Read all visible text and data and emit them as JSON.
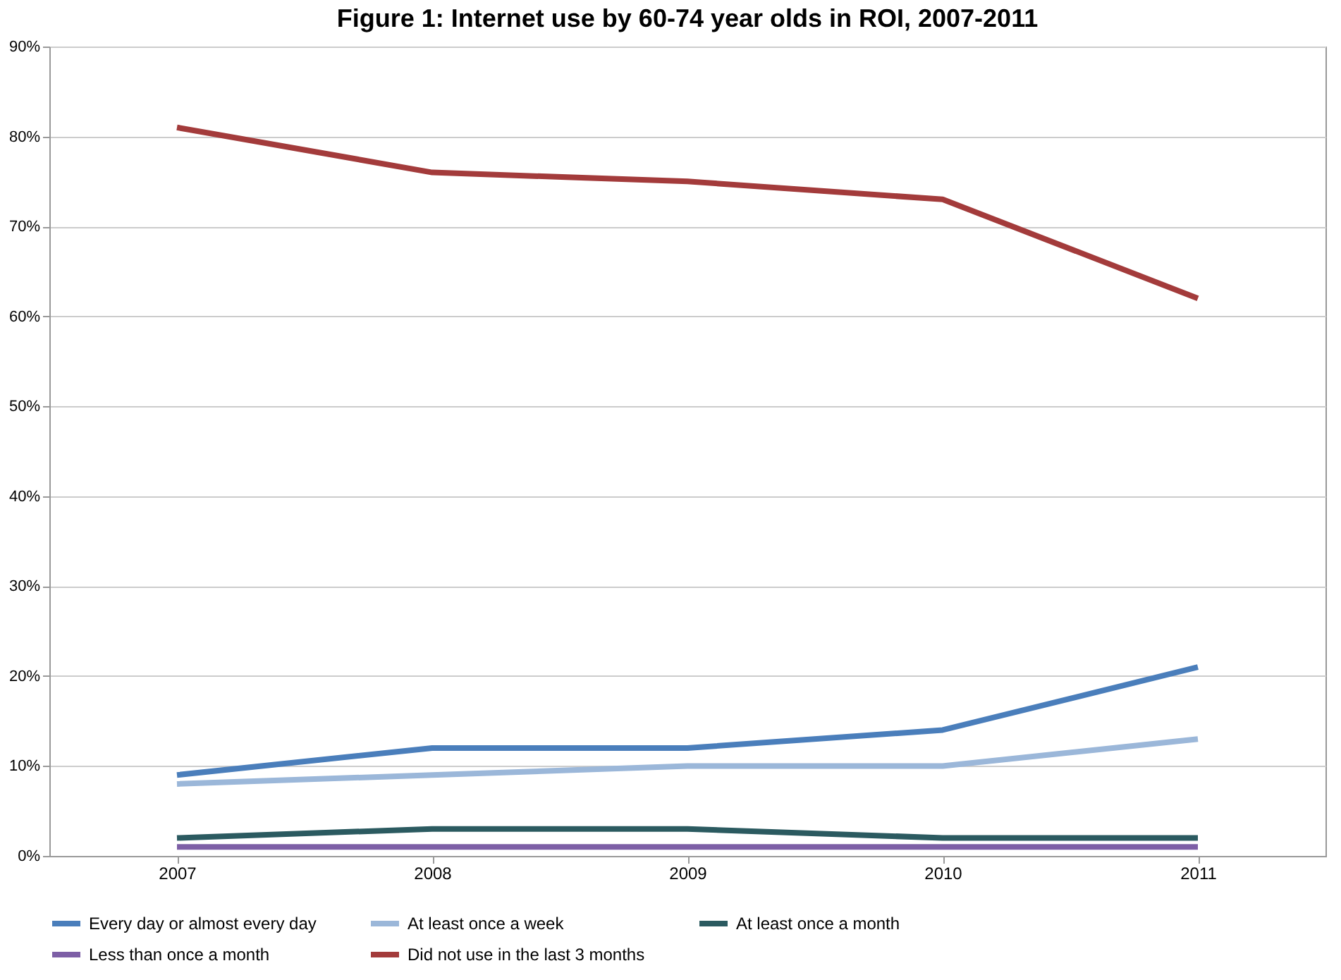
{
  "chart_data": {
    "type": "line",
    "title": "Figure 1: Internet use by 60-74 year olds in ROI, 2007-2011",
    "categories": [
      "2007",
      "2008",
      "2009",
      "2010",
      "2011"
    ],
    "series": [
      {
        "name": "Every day or almost every day",
        "color": "#4a7ebb",
        "values": [
          9,
          12,
          12,
          14,
          21
        ]
      },
      {
        "name": "At least once a week",
        "color": "#9bb7d9",
        "values": [
          8,
          9,
          10,
          10,
          13
        ]
      },
      {
        "name": "At least once a month",
        "color": "#2b5a60",
        "values": [
          2,
          3,
          3,
          2,
          2
        ]
      },
      {
        "name": "Less than once a month",
        "color": "#7d5fa6",
        "values": [
          1,
          1,
          1,
          1,
          1
        ]
      },
      {
        "name": "Did not use in the last 3 months",
        "color": "#a33b3b",
        "values": [
          81,
          76,
          75,
          73,
          62
        ]
      }
    ],
    "ylim": [
      0,
      90
    ],
    "yticks": [
      {
        "value": 0,
        "label": "0%"
      },
      {
        "value": 10,
        "label": "10%"
      },
      {
        "value": 20,
        "label": "20%"
      },
      {
        "value": 30,
        "label": "30%"
      },
      {
        "value": 40,
        "label": "40%"
      },
      {
        "value": 50,
        "label": "50%"
      },
      {
        "value": 60,
        "label": "60%"
      },
      {
        "value": 70,
        "label": "70%"
      },
      {
        "value": 80,
        "label": "80%"
      },
      {
        "value": 90,
        "label": "90%"
      }
    ],
    "grid": "y",
    "legend": "bottom",
    "marker": "none",
    "line_style": "solid"
  }
}
